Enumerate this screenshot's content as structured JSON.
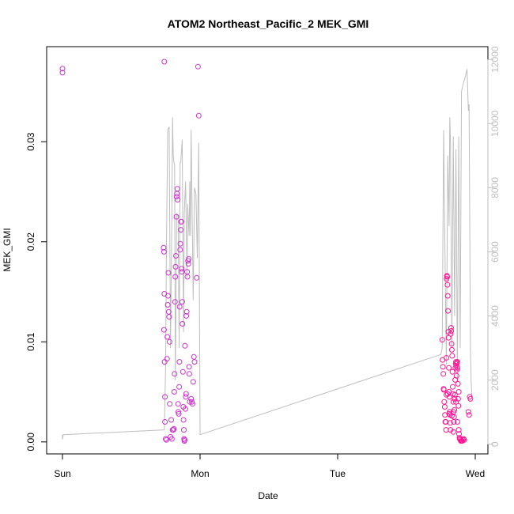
{
  "chart_data": {
    "type": "scatter",
    "title": "ATOM2 Northeast_Pacific_2 MEK_GMI",
    "xlabel": "Date",
    "ylabel": "MEK_GMI",
    "x_axis": {
      "range": [
        0,
        3.09
      ],
      "ticks": [
        {
          "value": 0,
          "label": "Sun"
        },
        {
          "value": 1,
          "label": "Mon"
        },
        {
          "value": 2,
          "label": "Tue"
        },
        {
          "value": 3,
          "label": "Wed"
        }
      ]
    },
    "y_axis": {
      "range": [
        -0.0012,
        0.0395
      ],
      "ticks": [
        {
          "value": 0.0,
          "label": "0.00"
        },
        {
          "value": 0.01,
          "label": "0.01"
        },
        {
          "value": 0.02,
          "label": "0.02"
        },
        {
          "value": 0.03,
          "label": "0.03"
        }
      ]
    },
    "y2_axis": {
      "range": [
        -300,
        12400
      ],
      "ticks": [
        {
          "value": 0,
          "label": "0"
        },
        {
          "value": 2000,
          "label": "2000"
        },
        {
          "value": 4000,
          "label": "4000"
        },
        {
          "value": 6000,
          "label": "6000"
        },
        {
          "value": 8000,
          "label": "8000"
        },
        {
          "value": 10000,
          "label": "10000"
        },
        {
          "value": 12000,
          "label": "12000"
        }
      ]
    },
    "colors": {
      "points_early": "#cc33cc",
      "points_late": "#ff1493",
      "altitude_line": "#bebebe",
      "axis": "#000000",
      "right_axis": "#bebebe"
    },
    "series": [
      {
        "kind": "points",
        "axis": "left",
        "color": "#cc33cc",
        "points": [
          [
            0.0,
            0.0373
          ],
          [
            0.0,
            0.0369
          ],
          [
            0.74,
            0.038
          ],
          [
            0.735,
            0.0194
          ],
          [
            0.738,
            0.019
          ],
          [
            0.74,
            0.0148
          ],
          [
            0.738,
            0.0112
          ],
          [
            0.742,
            0.008
          ],
          [
            0.745,
            0.0045
          ],
          [
            0.745,
            0.002
          ],
          [
            0.75,
            0.0003
          ],
          [
            0.755,
            0.0002
          ],
          [
            0.76,
            0.0083
          ],
          [
            0.762,
            0.0105
          ],
          [
            0.765,
            0.0137
          ],
          [
            0.768,
            0.0146
          ],
          [
            0.77,
            0.0169
          ],
          [
            0.772,
            0.013
          ],
          [
            0.775,
            0.0125
          ],
          [
            0.778,
            0.01
          ],
          [
            0.78,
            0.0038
          ],
          [
            0.785,
            0.0005
          ],
          [
            0.79,
            0.0022
          ],
          [
            0.795,
            0.0003
          ],
          [
            0.8,
            0.0012
          ],
          [
            0.805,
            0.0012
          ],
          [
            0.81,
            0.0013
          ],
          [
            0.812,
            0.005
          ],
          [
            0.815,
            0.0068
          ],
          [
            0.818,
            0.014
          ],
          [
            0.82,
            0.0165
          ],
          [
            0.822,
            0.0175
          ],
          [
            0.825,
            0.0186
          ],
          [
            0.828,
            0.0225
          ],
          [
            0.83,
            0.0245
          ],
          [
            0.832,
            0.0248
          ],
          [
            0.835,
            0.0253
          ],
          [
            0.837,
            0.0242
          ],
          [
            0.84,
            0.0038
          ],
          [
            0.842,
            0.003
          ],
          [
            0.845,
            0.0028
          ],
          [
            0.848,
            0.0055
          ],
          [
            0.85,
            0.008
          ],
          [
            0.852,
            0.0135
          ],
          [
            0.855,
            0.0192
          ],
          [
            0.857,
            0.0198
          ],
          [
            0.86,
            0.0212
          ],
          [
            0.862,
            0.022
          ],
          [
            0.864,
            0.022
          ],
          [
            0.866,
            0.0173
          ],
          [
            0.868,
            0.017
          ],
          [
            0.87,
            0.014
          ],
          [
            0.872,
            0.0118
          ],
          [
            0.875,
            0.007
          ],
          [
            0.878,
            0.0035
          ],
          [
            0.88,
            0.0022
          ],
          [
            0.882,
            0.0012
          ],
          [
            0.884,
            0.0003
          ],
          [
            0.886,
            0.0001
          ],
          [
            0.888,
            0.0002
          ],
          [
            0.89,
            0.0096
          ],
          [
            0.893,
            0.0033
          ],
          [
            0.896,
            0.0045
          ],
          [
            0.898,
            0.0048
          ],
          [
            0.9,
            0.0126
          ],
          [
            0.903,
            0.013
          ],
          [
            0.906,
            0.017
          ],
          [
            0.908,
            0.0165
          ],
          [
            0.912,
            0.0181
          ],
          [
            0.915,
            0.0178
          ],
          [
            0.918,
            0.0183
          ],
          [
            0.92,
            0.0075
          ],
          [
            0.922,
            0.0068
          ],
          [
            0.925,
            0.004
          ],
          [
            0.935,
            0.0043
          ],
          [
            0.94,
            0.004
          ],
          [
            0.945,
            0.0038
          ],
          [
            0.95,
            0.006
          ],
          [
            0.955,
            0.0085
          ],
          [
            0.96,
            0.008
          ],
          [
            0.975,
            0.0164
          ],
          [
            0.985,
            0.0375
          ],
          [
            0.99,
            0.0326
          ]
        ]
      },
      {
        "kind": "points",
        "axis": "left",
        "color": "#ff1493",
        "points": [
          [
            2.76,
            0.0102
          ],
          [
            2.762,
            0.0082
          ],
          [
            2.765,
            0.0075
          ],
          [
            2.768,
            0.0068
          ],
          [
            2.77,
            0.0053
          ],
          [
            2.772,
            0.0052
          ],
          [
            2.775,
            0.004
          ],
          [
            2.778,
            0.0035
          ],
          [
            2.78,
            0.0027
          ],
          [
            2.782,
            0.002
          ],
          [
            2.785,
            0.002
          ],
          [
            2.788,
            0.0012
          ],
          [
            2.79,
            0.0084
          ],
          [
            2.792,
            0.0163
          ],
          [
            2.794,
            0.0166
          ],
          [
            2.796,
            0.0165
          ],
          [
            2.798,
            0.0157
          ],
          [
            2.8,
            0.0146
          ],
          [
            2.802,
            0.0131
          ],
          [
            2.804,
            0.011
          ],
          [
            2.806,
            0.0104
          ],
          [
            2.808,
            0.0074
          ],
          [
            2.81,
            0.005
          ],
          [
            2.812,
            0.0045
          ],
          [
            2.814,
            0.003
          ],
          [
            2.816,
            0.0027
          ],
          [
            2.818,
            0.0019
          ],
          [
            2.82,
            0.0012
          ],
          [
            2.822,
            0.0108
          ],
          [
            2.824,
            0.0114
          ],
          [
            2.826,
            0.0111
          ],
          [
            2.828,
            0.0098
          ],
          [
            2.83,
            0.0092
          ],
          [
            2.832,
            0.0086
          ],
          [
            2.834,
            0.007
          ],
          [
            2.836,
            0.0055
          ],
          [
            2.838,
            0.0048
          ],
          [
            2.84,
            0.004
          ],
          [
            2.842,
            0.003
          ],
          [
            2.844,
            0.002
          ],
          [
            2.846,
            0.0025
          ],
          [
            2.848,
            0.0032
          ],
          [
            2.85,
            0.0043
          ],
          [
            2.852,
            0.0047
          ],
          [
            2.854,
            0.0062
          ],
          [
            2.856,
            0.0074
          ],
          [
            2.858,
            0.0078
          ],
          [
            2.86,
            0.008
          ],
          [
            2.862,
            0.0076
          ],
          [
            2.864,
            0.0066
          ],
          [
            2.866,
            0.0072
          ],
          [
            2.868,
            0.0079
          ],
          [
            2.87,
            0.008
          ],
          [
            2.872,
            0.0074
          ],
          [
            2.874,
            0.0058
          ],
          [
            2.876,
            0.0043
          ],
          [
            2.878,
            0.0036
          ],
          [
            2.88,
            0.0012
          ],
          [
            2.882,
            0.0008
          ],
          [
            2.885,
            0.0004
          ],
          [
            2.888,
            0.0003
          ],
          [
            2.892,
            0.0002
          ],
          [
            2.896,
            0.0001
          ],
          [
            2.9,
            0.0001
          ],
          [
            2.905,
            0.0001
          ],
          [
            2.91,
            0.0002
          ],
          [
            2.915,
            0.0003
          ],
          [
            2.92,
            0.0002
          ],
          [
            2.95,
            0.003
          ],
          [
            2.955,
            0.0027
          ],
          [
            2.96,
            0.0045
          ],
          [
            2.965,
            0.0043
          ],
          [
            2.79,
            0.0047
          ],
          [
            2.8,
            0.0048
          ],
          [
            2.81,
            0.0028
          ],
          [
            2.83,
            0.0026
          ],
          [
            2.84,
            0.001
          ],
          [
            2.86,
            0.004
          ],
          [
            2.87,
            0.002
          ],
          [
            2.88,
            0.005
          ]
        ]
      },
      {
        "kind": "line",
        "axis": "right",
        "color": "#bebebe",
        "points": [
          [
            0.0,
            300
          ],
          [
            0.0,
            150
          ],
          [
            0.005,
            300
          ],
          [
            0.74,
            450
          ],
          [
            0.75,
            2500
          ],
          [
            0.755,
            6000
          ],
          [
            0.765,
            9800
          ],
          [
            0.775,
            9900
          ],
          [
            0.785,
            3000
          ],
          [
            0.795,
            7000
          ],
          [
            0.8,
            10200
          ],
          [
            0.805,
            9000
          ],
          [
            0.81,
            8800
          ],
          [
            0.815,
            8700
          ],
          [
            0.82,
            2000
          ],
          [
            0.83,
            7200
          ],
          [
            0.84,
            7100
          ],
          [
            0.848,
            3000
          ],
          [
            0.855,
            8800
          ],
          [
            0.86,
            8800
          ],
          [
            0.87,
            9500
          ],
          [
            0.88,
            3500
          ],
          [
            0.885,
            7200
          ],
          [
            0.895,
            8200
          ],
          [
            0.905,
            5200
          ],
          [
            0.91,
            7500
          ],
          [
            0.92,
            6500
          ],
          [
            0.925,
            8200
          ],
          [
            0.93,
            6500
          ],
          [
            0.935,
            9800
          ],
          [
            0.95,
            4500
          ],
          [
            0.96,
            8000
          ],
          [
            0.97,
            7800
          ],
          [
            0.98,
            5800
          ],
          [
            0.99,
            9400
          ],
          [
            1.0,
            300
          ],
          [
            2.75,
            2800
          ],
          [
            2.76,
            3000
          ],
          [
            2.77,
            9800
          ],
          [
            2.78,
            6000
          ],
          [
            2.79,
            2500
          ],
          [
            2.8,
            9000
          ],
          [
            2.81,
            6800
          ],
          [
            2.815,
            10200
          ],
          [
            2.82,
            9400
          ],
          [
            2.83,
            3000
          ],
          [
            2.84,
            9600
          ],
          [
            2.85,
            4000
          ],
          [
            2.86,
            9200
          ],
          [
            2.87,
            2000
          ],
          [
            2.88,
            9600
          ],
          [
            2.89,
            3000
          ],
          [
            2.9,
            11000
          ],
          [
            2.91,
            11200
          ],
          [
            2.93,
            11500
          ],
          [
            2.94,
            11700
          ],
          [
            2.95,
            10400
          ],
          [
            2.955,
            10600
          ],
          [
            2.965,
            3000
          ],
          [
            2.97,
            2000
          ],
          [
            2.975,
            1500
          ]
        ]
      }
    ]
  }
}
